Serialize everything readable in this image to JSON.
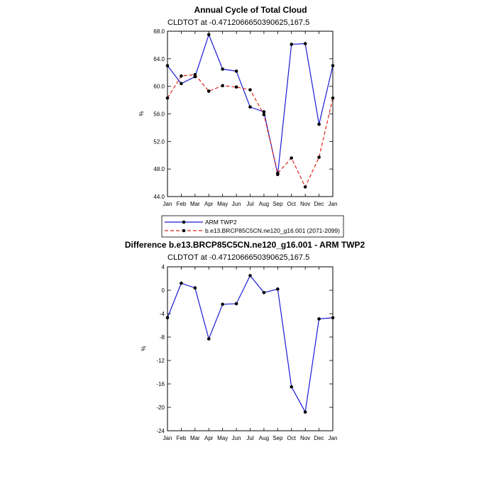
{
  "chart_data": [
    {
      "type": "line",
      "title": "Annual Cycle of Total Cloud",
      "subtitle": "CLDTOT at -0.4712066650390625,167.5",
      "ylabel": "%",
      "ylim": [
        44,
        68
      ],
      "yticks": [
        "44.0",
        "48.0",
        "52.0",
        "56.0",
        "60.0",
        "64.0",
        "68.0"
      ],
      "categories": [
        "Jan",
        "Feb",
        "Mar",
        "Apr",
        "May",
        "Jun",
        "Jul",
        "Aug",
        "Sep",
        "Oct",
        "Nov",
        "Dec",
        "Jan"
      ],
      "legend_placement": "bottom",
      "series": [
        {
          "name": "ARM TWP2",
          "color": "#1a1ad6",
          "dash": "solid",
          "values": [
            63.0,
            60.4,
            61.4,
            67.5,
            62.5,
            62.2,
            57.0,
            56.3,
            47.2,
            66.1,
            66.2,
            54.5,
            63.0
          ]
        },
        {
          "name": "b.e13.BRCP85C5CN.ne120_g16.001 (2071-2099)",
          "color": "#e0241b",
          "dash": "dashed",
          "values": [
            58.3,
            61.5,
            61.7,
            59.3,
            60.1,
            59.9,
            59.5,
            55.9,
            47.4,
            49.6,
            45.4,
            49.7,
            58.3
          ]
        }
      ]
    },
    {
      "type": "line",
      "title": "Difference b.e13.BRCP85C5CN.ne120_g16.001 - ARM TWP2",
      "subtitle": "CLDTOT at -0.4712066650390625,167.5",
      "ylabel": "%",
      "ylim": [
        -24,
        4
      ],
      "yticks": [
        "-24",
        "-20",
        "-16",
        "-12",
        "-8",
        "-4",
        "0",
        "4"
      ],
      "categories": [
        "Jan",
        "Feb",
        "Mar",
        "Apr",
        "May",
        "Jun",
        "Jul",
        "Aug",
        "Sep",
        "Oct",
        "Nov",
        "Dec",
        "Jan"
      ],
      "series": [
        {
          "color": "#1a1ad6",
          "dash": "solid",
          "values": [
            -4.7,
            1.2,
            0.4,
            -8.3,
            -2.4,
            -2.3,
            2.5,
            -0.4,
            0.2,
            -16.5,
            -20.8,
            -4.9,
            -4.7
          ]
        }
      ]
    }
  ]
}
